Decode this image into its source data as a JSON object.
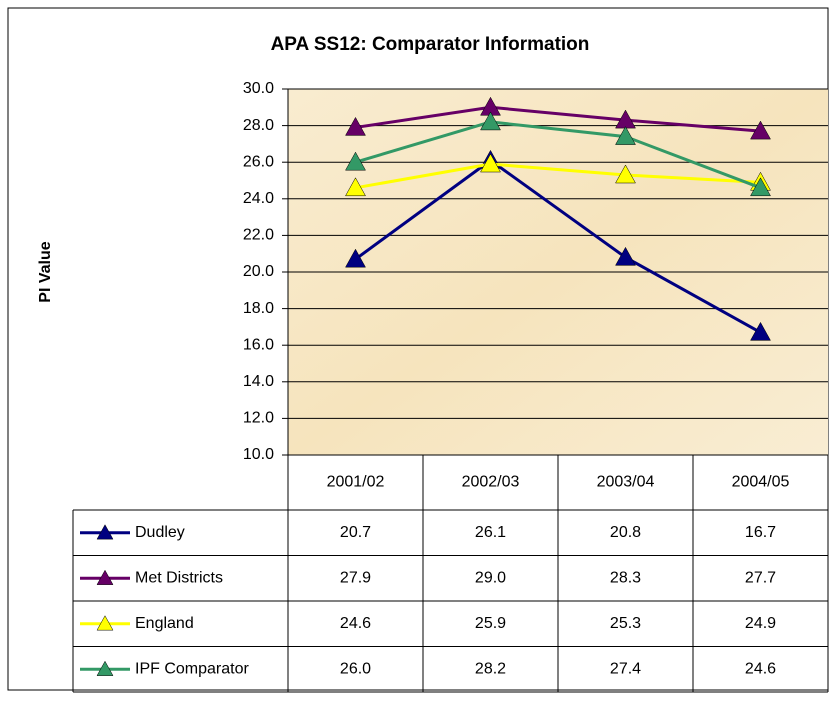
{
  "chart_data": {
    "type": "line",
    "title": "APA SS12: Comparator Information",
    "y_label": "PI Value",
    "categories": [
      "2001/02",
      "2002/03",
      "2003/04",
      "2004/05"
    ],
    "series": [
      {
        "name": "Dudley",
        "color": "#000080",
        "values": [
          20.7,
          26.1,
          20.8,
          16.7
        ],
        "value_labels": [
          "20.7",
          "26.1",
          "20.8",
          "16.7"
        ]
      },
      {
        "name": "Met Districts",
        "color": "#660066",
        "values": [
          27.9,
          29.0,
          28.3,
          27.7
        ],
        "value_labels": [
          "27.9",
          "29.0",
          "28.3",
          "27.7"
        ]
      },
      {
        "name": "England",
        "color": "#FFFF00",
        "values": [
          24.6,
          25.9,
          25.3,
          24.9
        ],
        "value_labels": [
          "24.6",
          "25.9",
          "25.3",
          "24.9"
        ]
      },
      {
        "name": "IPF Comparator",
        "color": "#339966",
        "values": [
          26.0,
          28.2,
          27.4,
          24.6
        ],
        "value_labels": [
          "26.0",
          "28.2",
          "27.4",
          "24.6"
        ]
      }
    ],
    "ylim": [
      10,
      30
    ],
    "yticks": [
      {
        "value": 10,
        "label": "10.0"
      },
      {
        "value": 12,
        "label": "12.0"
      },
      {
        "value": 14,
        "label": "14.0"
      },
      {
        "value": 16,
        "label": "16.0"
      },
      {
        "value": 18,
        "label": "18.0"
      },
      {
        "value": 20,
        "label": "20.0"
      },
      {
        "value": 22,
        "label": "22.0"
      },
      {
        "value": 24,
        "label": "24.0"
      },
      {
        "value": 26,
        "label": "26.0"
      },
      {
        "value": 28,
        "label": "28.0"
      },
      {
        "value": 30,
        "label": "30.0"
      }
    ],
    "grid": true
  }
}
